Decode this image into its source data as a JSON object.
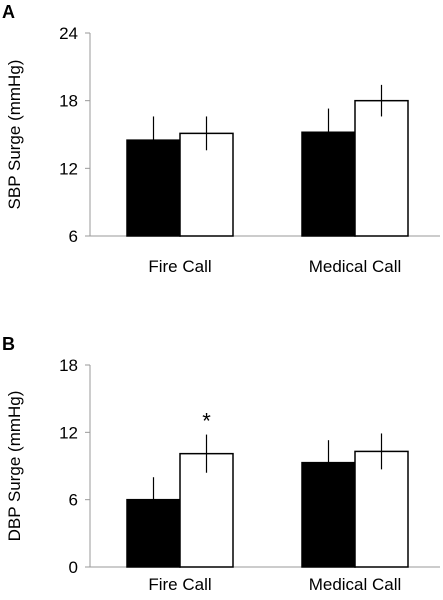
{
  "chart_data": [
    {
      "panel": "A",
      "type": "bar",
      "ylabel": "SBP Surge (mmHg)",
      "ylim": [
        6,
        24
      ],
      "yticks": [
        "6",
        "12",
        "18",
        "24"
      ],
      "categories": [
        "Fire Call",
        "Medical Call"
      ],
      "series": [
        {
          "color": "#000000",
          "values": [
            14.5,
            15.2
          ],
          "error": [
            2.1,
            2.1
          ]
        },
        {
          "color": "#ffffff",
          "values": [
            15.1,
            18.0
          ],
          "error": [
            1.5,
            1.4
          ]
        }
      ],
      "annotations": [],
      "legend": "none",
      "grid": false
    },
    {
      "panel": "B",
      "type": "bar",
      "ylabel": "DBP Surge (mmHg)",
      "ylim": [
        0,
        18
      ],
      "yticks": [
        "0",
        "6",
        "12",
        "18"
      ],
      "categories": [
        "Fire Call",
        "Medical Call"
      ],
      "series": [
        {
          "color": "#000000",
          "values": [
            6.0,
            9.3
          ],
          "error": [
            2.0,
            2.0
          ]
        },
        {
          "color": "#ffffff",
          "values": [
            10.1,
            10.3
          ],
          "error": [
            1.7,
            1.6
          ]
        }
      ],
      "annotations": [
        {
          "text": "*",
          "category": 0,
          "series": 1
        }
      ],
      "legend": "none",
      "grid": false
    }
  ]
}
